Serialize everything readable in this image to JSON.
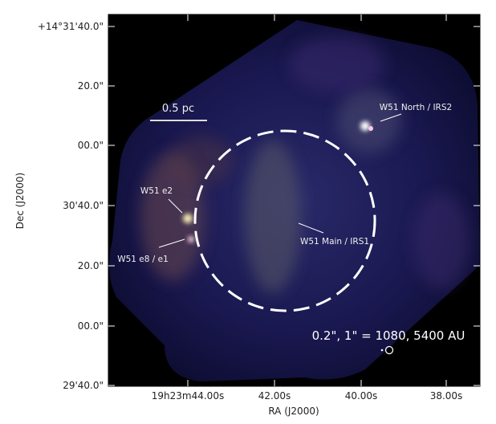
{
  "figure": {
    "x_label": "RA (J2000)",
    "y_label": "Dec (J2000)",
    "x_ticks": [
      "19h23m44.00s",
      "42.00s",
      "40.00s",
      "38.00s"
    ],
    "y_ticks": [
      "+14°31'40.0\"",
      "20.0\"",
      "00.0\"",
      "30'40.0\"",
      "20.0\"",
      "00.0\"",
      "29'40.0\""
    ],
    "scale_bar": "0.5 pc",
    "annotations": [
      "W51 North / IRS2",
      "W51 e2",
      "W51 e8 / e1",
      "W51 Main / IRS1"
    ],
    "beam_label": "0.2\", 1\" = 1080, 5400 AU"
  }
}
